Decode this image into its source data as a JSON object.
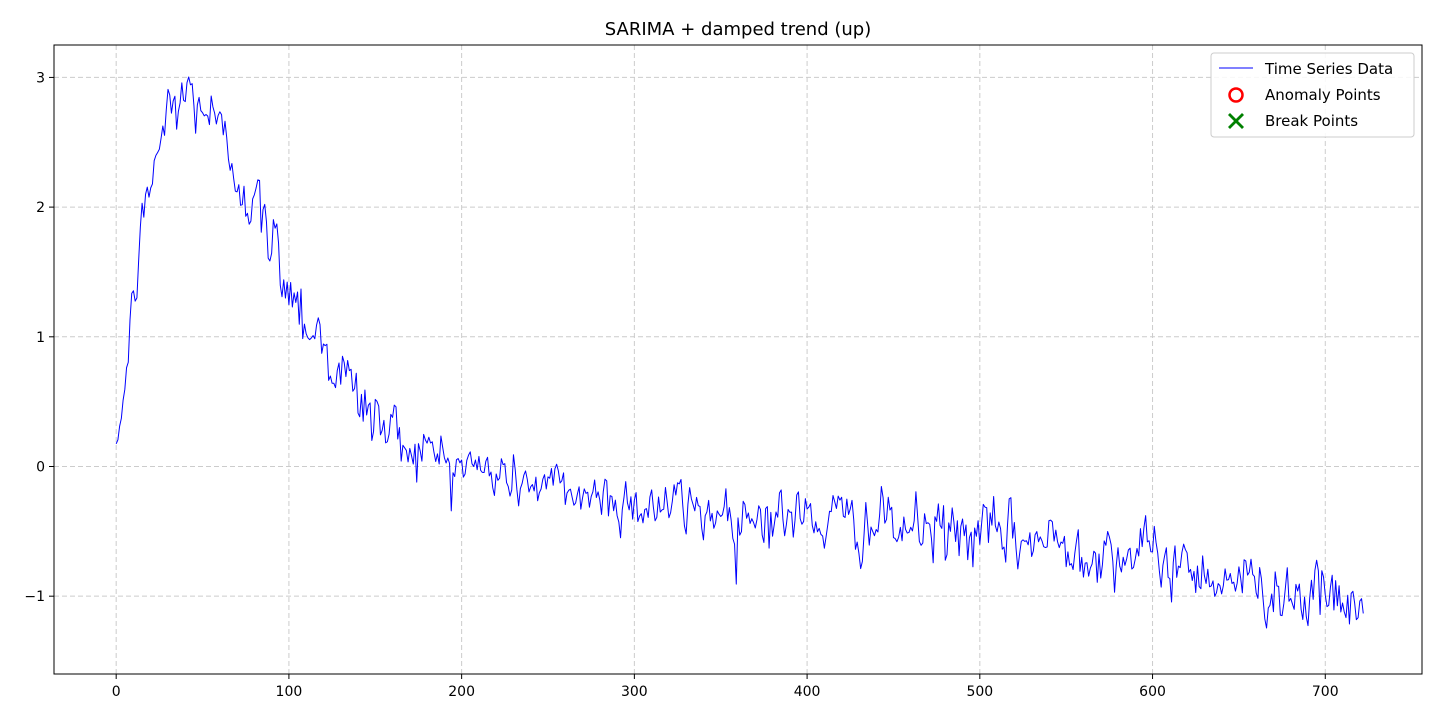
{
  "chart_data": {
    "type": "line",
    "title": "SARIMA + damped trend (up)",
    "xlabel": "",
    "ylabel": "",
    "xlim": [
      -36,
      756
    ],
    "ylim": [
      -1.6,
      3.25
    ],
    "x_ticks": [
      0,
      100,
      200,
      300,
      400,
      500,
      600,
      700
    ],
    "x_tick_labels": [
      "0",
      "100",
      "200",
      "300",
      "400",
      "500",
      "600",
      "700"
    ],
    "y_ticks": [
      -1,
      0,
      1,
      2,
      3
    ],
    "y_tick_labels": [
      "−1",
      "0",
      "1",
      "2",
      "3"
    ],
    "grid": true,
    "grid_style": "dashed",
    "legend_position": "top-right",
    "legend": [
      "Time Series Data",
      "Anomaly Points",
      "Break Points"
    ],
    "series": [
      {
        "name": "Time Series Data",
        "color": "#0000ff",
        "x_start": 0,
        "x_step": 1,
        "count": 723,
        "trend_anchors": [
          [
            0,
            0.1
          ],
          [
            5,
            0.6
          ],
          [
            10,
            1.3
          ],
          [
            15,
            1.8
          ],
          [
            20,
            2.2
          ],
          [
            25,
            2.5
          ],
          [
            30,
            2.7
          ],
          [
            35,
            2.82
          ],
          [
            40,
            2.85
          ],
          [
            45,
            2.85
          ],
          [
            50,
            2.8
          ],
          [
            55,
            2.7
          ],
          [
            60,
            2.55
          ],
          [
            65,
            2.42
          ],
          [
            70,
            2.3
          ],
          [
            75,
            2.15
          ],
          [
            80,
            2.0
          ],
          [
            90,
            1.72
          ],
          [
            100,
            1.45
          ],
          [
            110,
            1.15
          ],
          [
            120,
            0.95
          ],
          [
            130,
            0.72
          ],
          [
            140,
            0.52
          ],
          [
            150,
            0.38
          ],
          [
            160,
            0.25
          ],
          [
            170,
            0.18
          ],
          [
            180,
            0.12
          ],
          [
            190,
            0.07
          ],
          [
            200,
            0.02
          ],
          [
            210,
            -0.02
          ],
          [
            220,
            -0.06
          ],
          [
            230,
            -0.1
          ],
          [
            250,
            -0.16
          ],
          [
            300,
            -0.28
          ],
          [
            350,
            -0.35
          ],
          [
            400,
            -0.4
          ],
          [
            450,
            -0.47
          ],
          [
            500,
            -0.53
          ],
          [
            550,
            -0.6
          ],
          [
            600,
            -0.7
          ],
          [
            650,
            -0.88
          ],
          [
            700,
            -1.02
          ],
          [
            722,
            -1.12
          ]
        ],
        "noise_amplitude": [
          [
            0,
            0.1
          ],
          [
            30,
            0.16
          ],
          [
            60,
            0.14
          ],
          [
            100,
            0.16
          ],
          [
            150,
            0.14
          ],
          [
            200,
            0.1
          ],
          [
            300,
            0.12
          ],
          [
            500,
            0.13
          ],
          [
            722,
            0.12
          ]
        ]
      },
      {
        "name": "Anomaly Points",
        "color": "#ff0000",
        "marker": "circle",
        "points": []
      },
      {
        "name": "Break Points",
        "color": "#008000",
        "marker": "x",
        "points": []
      }
    ]
  }
}
